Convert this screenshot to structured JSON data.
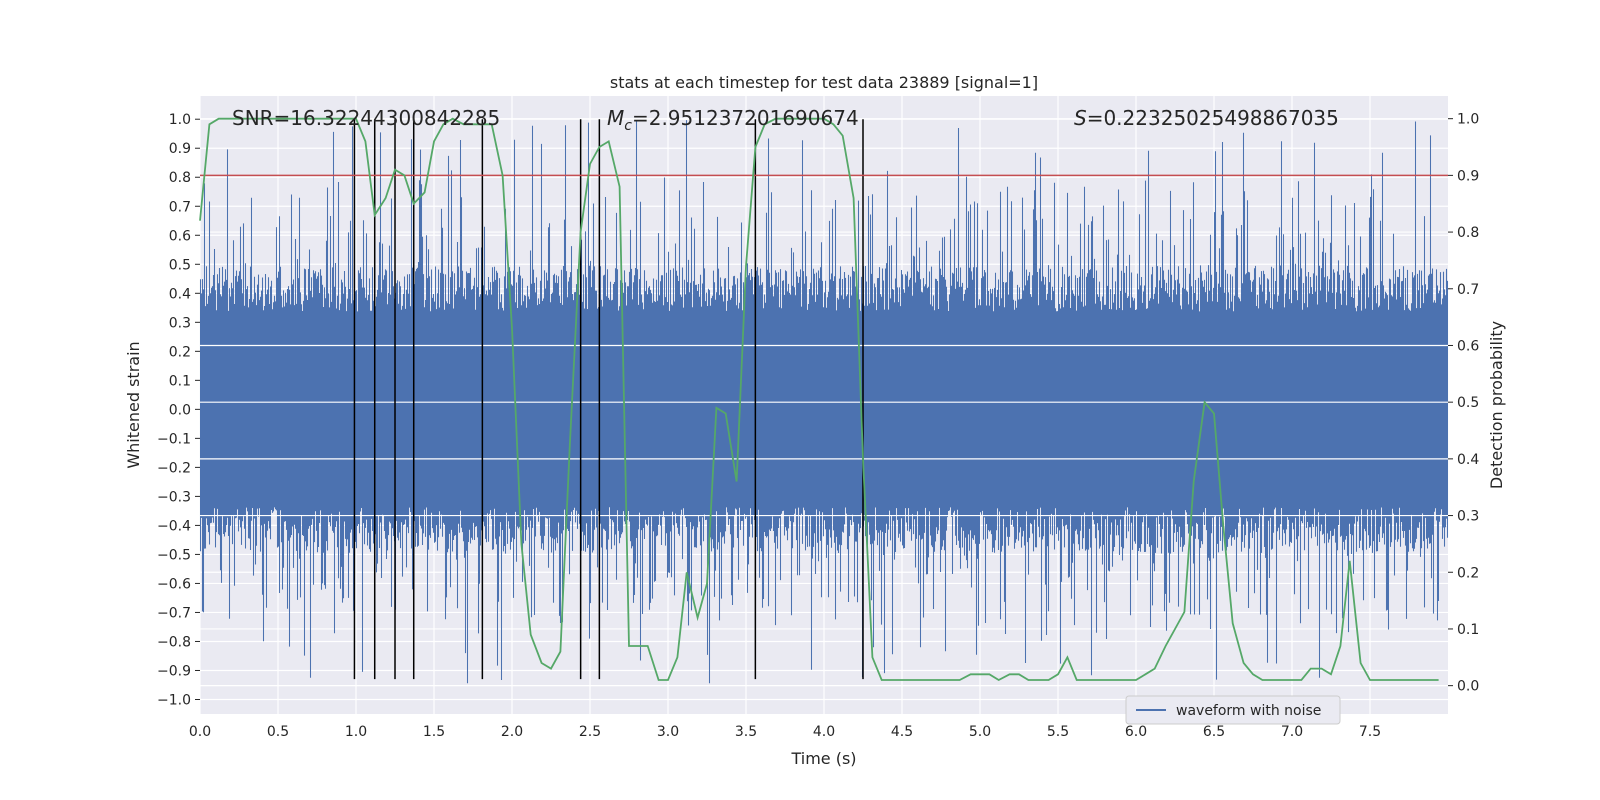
{
  "chart_data": {
    "type": "line",
    "title": "stats at each timestep for test data 23889 [signal=1]",
    "xlabel": "Time (s)",
    "ylabel": "Whitened strain",
    "ylabel_right": "Detection probability",
    "xlim": [
      0,
      8
    ],
    "ylim": [
      -1.05,
      1.08
    ],
    "ylim_right": [
      -0.05,
      1.04
    ],
    "x_ticks": [
      "0.0",
      "0.5",
      "1.0",
      "1.5",
      "2.0",
      "2.5",
      "3.0",
      "3.5",
      "4.0",
      "4.5",
      "5.0",
      "5.5",
      "6.0",
      "6.5",
      "7.0",
      "7.5"
    ],
    "y_ticks": [
      "1.0",
      "0.9",
      "0.8",
      "0.7",
      "0.6",
      "0.5",
      "0.4",
      "0.3",
      "0.2",
      "0.1",
      "0.0",
      "−0.1",
      "−0.2",
      "−0.3",
      "−0.4",
      "−0.5",
      "−0.6",
      "−0.7",
      "−0.8",
      "−0.9",
      "−1.0"
    ],
    "y_ticks_right": [
      "1.0",
      "0.9",
      "0.8",
      "0.7",
      "0.6",
      "0.5",
      "0.4",
      "0.3",
      "0.2",
      "0.1",
      "0.0"
    ],
    "annotations": {
      "snr": "SNR=16.32244300842285",
      "mc_symbol": "M",
      "mc_sub": "c",
      "mc_value": "=2.951237201690674",
      "s_symbol": "S",
      "s_value": "=0.22325025498867035"
    },
    "threshold": 0.9,
    "vertical_lines": [
      0.99,
      1.12,
      1.25,
      1.37,
      1.81,
      2.44,
      2.56,
      3.56,
      4.25
    ],
    "series": [
      {
        "name": "waveform with noise",
        "color": "#4c72b0",
        "envelope_abs": 0.45,
        "peak_abs": 1.0
      },
      {
        "name": "detection probability",
        "color": "#55a868",
        "x": [
          0.0,
          0.06,
          0.12,
          0.19,
          0.25,
          0.31,
          0.37,
          0.44,
          0.5,
          0.56,
          0.62,
          0.69,
          0.75,
          0.81,
          0.87,
          0.94,
          1.0,
          1.06,
          1.12,
          1.19,
          1.25,
          1.31,
          1.37,
          1.44,
          1.5,
          1.56,
          1.62,
          1.69,
          1.75,
          1.81,
          1.87,
          1.94,
          2.0,
          2.06,
          2.12,
          2.19,
          2.25,
          2.31,
          2.37,
          2.44,
          2.5,
          2.56,
          2.62,
          2.69,
          2.75,
          2.81,
          2.87,
          2.94,
          3.0,
          3.06,
          3.12,
          3.19,
          3.25,
          3.31,
          3.37,
          3.44,
          3.5,
          3.56,
          3.62,
          3.69,
          3.75,
          3.81,
          3.87,
          3.94,
          4.0,
          4.06,
          4.12,
          4.19,
          4.25,
          4.31,
          4.37,
          4.44,
          4.5,
          4.56,
          4.62,
          4.69,
          4.75,
          4.81,
          4.87,
          4.94,
          5.0,
          5.06,
          5.12,
          5.19,
          5.25,
          5.31,
          5.37,
          5.44,
          5.5,
          5.56,
          5.62,
          5.69,
          5.75,
          5.81,
          5.87,
          5.94,
          6.0,
          6.06,
          6.12,
          6.19,
          6.25,
          6.31,
          6.37,
          6.44,
          6.5,
          6.56,
          6.62,
          6.69,
          6.75,
          6.81,
          6.87,
          6.94,
          7.0,
          7.06,
          7.12,
          7.19,
          7.25,
          7.31,
          7.37,
          7.44,
          7.5,
          7.56,
          7.62,
          7.69,
          7.75,
          7.81,
          7.87,
          7.94
        ],
        "values": [
          0.82,
          0.99,
          1.0,
          1.0,
          1.0,
          1.0,
          1.0,
          1.0,
          1.0,
          1.0,
          1.0,
          1.0,
          1.0,
          1.0,
          1.0,
          1.0,
          1.0,
          0.96,
          0.83,
          0.86,
          0.91,
          0.9,
          0.85,
          0.87,
          0.96,
          0.99,
          1.0,
          0.99,
          0.99,
          0.99,
          0.99,
          0.9,
          0.63,
          0.25,
          0.09,
          0.04,
          0.03,
          0.06,
          0.42,
          0.8,
          0.92,
          0.95,
          0.96,
          0.88,
          0.07,
          0.07,
          0.07,
          0.01,
          0.01,
          0.05,
          0.2,
          0.12,
          0.18,
          0.49,
          0.48,
          0.36,
          0.74,
          0.95,
          0.99,
          1.0,
          1.0,
          1.0,
          1.0,
          1.0,
          1.0,
          0.99,
          0.97,
          0.86,
          0.4,
          0.05,
          0.01,
          0.01,
          0.01,
          0.01,
          0.01,
          0.01,
          0.01,
          0.01,
          0.01,
          0.02,
          0.02,
          0.02,
          0.01,
          0.02,
          0.02,
          0.01,
          0.01,
          0.01,
          0.02,
          0.05,
          0.01,
          0.01,
          0.01,
          0.01,
          0.01,
          0.01,
          0.01,
          0.02,
          0.03,
          0.07,
          0.1,
          0.13,
          0.36,
          0.5,
          0.48,
          0.28,
          0.11,
          0.04,
          0.02,
          0.01,
          0.01,
          0.01,
          0.01,
          0.01,
          0.03,
          0.03,
          0.02,
          0.07,
          0.22,
          0.04,
          0.01,
          0.01,
          0.01,
          0.01,
          0.01,
          0.01,
          0.01,
          0.01
        ]
      }
    ]
  },
  "legend": {
    "label": "waveform with noise"
  }
}
